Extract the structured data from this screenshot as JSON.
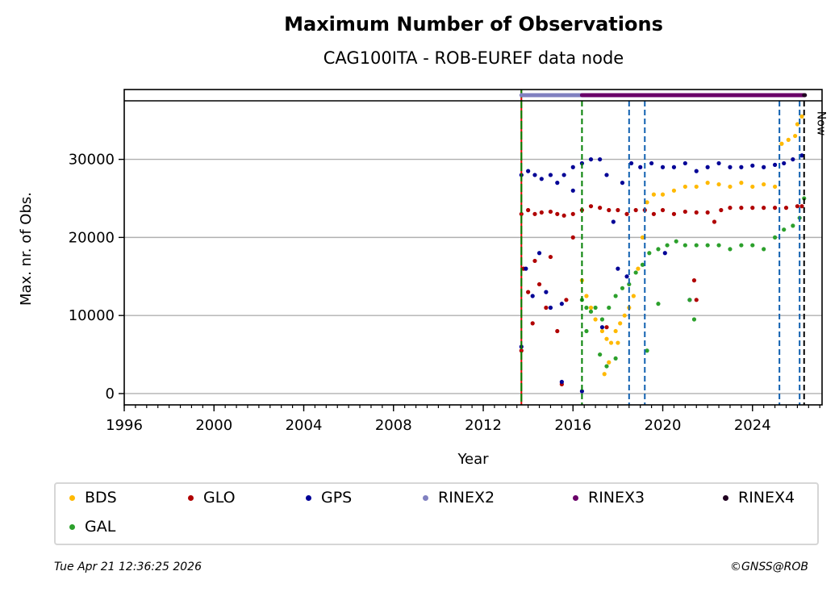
{
  "header": {
    "title": "Maximum Number of Observations",
    "subtitle": "CAG100ITA - ROB-EUREF data node"
  },
  "footer": {
    "timestamp": "Tue Apr 21 12:36:25 2026",
    "copyright": "©GNSS@ROB"
  },
  "chart_data": {
    "type": "scatter",
    "title": "Maximum Number of Observations",
    "subtitle": "CAG100ITA - ROB-EUREF data node",
    "xlabel": "Year",
    "ylabel": "Max. nr. of Obs.",
    "xlim": [
      1996,
      2027.1
    ],
    "ylim": [
      -1450,
      37500
    ],
    "x_ticks": [
      1996,
      2000,
      2004,
      2008,
      2012,
      2016,
      2020,
      2024
    ],
    "x_tick_labels": [
      "1996",
      "2000",
      "2004",
      "2008",
      "2012",
      "2016",
      "2020",
      "2024"
    ],
    "x_minor_step": 0.5,
    "y_ticks": [
      0,
      10000,
      20000,
      30000
    ],
    "y_tick_labels": [
      "0",
      "10000",
      "20000",
      "30000"
    ],
    "grid": "y",
    "now_label": "Now",
    "legend_position": "bottom",
    "series": [
      {
        "name": "BDS",
        "color": "#ffb900",
        "points": [
          [
            2016.4,
            14500
          ],
          [
            2016.6,
            12500
          ],
          [
            2016.8,
            11000
          ],
          [
            2017.0,
            9500
          ],
          [
            2017.3,
            8000
          ],
          [
            2017.5,
            7000
          ],
          [
            2017.7,
            6500
          ],
          [
            2017.9,
            8000
          ],
          [
            2018.1,
            9000
          ],
          [
            2018.3,
            10000
          ],
          [
            2018.5,
            11000
          ],
          [
            2018.7,
            12500
          ],
          [
            2018.9,
            16000
          ],
          [
            2019.1,
            20000
          ],
          [
            2019.3,
            24500
          ],
          [
            2019.6,
            25500
          ],
          [
            2020.0,
            25500
          ],
          [
            2020.5,
            26000
          ],
          [
            2021.0,
            26500
          ],
          [
            2021.5,
            26500
          ],
          [
            2022.0,
            27000
          ],
          [
            2022.5,
            26800
          ],
          [
            2023.0,
            26500
          ],
          [
            2023.5,
            27000
          ],
          [
            2024.0,
            26500
          ],
          [
            2024.5,
            26800
          ],
          [
            2025.0,
            26500
          ],
          [
            2025.3,
            32000
          ],
          [
            2025.6,
            32500
          ],
          [
            2025.9,
            33000
          ],
          [
            2026.0,
            34500
          ],
          [
            2026.2,
            35500
          ],
          [
            2017.4,
            2500
          ],
          [
            2017.6,
            4000
          ],
          [
            2018.0,
            6500
          ]
        ]
      },
      {
        "name": "GLO",
        "color": "#b00000",
        "points": [
          [
            2013.7,
            23000
          ],
          [
            2014.0,
            23500
          ],
          [
            2014.3,
            23000
          ],
          [
            2014.6,
            23200
          ],
          [
            2015.0,
            23300
          ],
          [
            2015.3,
            23000
          ],
          [
            2015.6,
            22800
          ],
          [
            2016.0,
            23000
          ],
          [
            2016.4,
            23500
          ],
          [
            2016.8,
            24000
          ],
          [
            2017.2,
            23800
          ],
          [
            2017.6,
            23500
          ],
          [
            2018.0,
            23500
          ],
          [
            2018.4,
            23000
          ],
          [
            2018.8,
            23500
          ],
          [
            2019.2,
            23500
          ],
          [
            2019.6,
            23000
          ],
          [
            2020.0,
            23500
          ],
          [
            2020.5,
            23000
          ],
          [
            2021.0,
            23300
          ],
          [
            2021.5,
            23200
          ],
          [
            2022.0,
            23200
          ],
          [
            2022.3,
            22000
          ],
          [
            2022.6,
            23500
          ],
          [
            2023.0,
            23800
          ],
          [
            2023.5,
            23800
          ],
          [
            2024.0,
            23800
          ],
          [
            2024.5,
            23800
          ],
          [
            2025.0,
            23800
          ],
          [
            2025.5,
            23800
          ],
          [
            2026.0,
            24000
          ],
          [
            2026.2,
            24000
          ],
          [
            2013.8,
            16000
          ],
          [
            2014.0,
            13000
          ],
          [
            2014.2,
            9000
          ],
          [
            2014.5,
            14000
          ],
          [
            2014.8,
            11000
          ],
          [
            2015.0,
            17500
          ],
          [
            2015.3,
            8000
          ],
          [
            2015.5,
            1200
          ],
          [
            2015.7,
            12000
          ],
          [
            2016.0,
            20000
          ],
          [
            2013.7,
            5500
          ],
          [
            2014.3,
            17000
          ],
          [
            2021.4,
            14500
          ],
          [
            2021.5,
            12000
          ],
          [
            2017.5,
            8500
          ]
        ]
      },
      {
        "name": "GPS",
        "color": "#000096",
        "points": [
          [
            2013.7,
            28000
          ],
          [
            2014.0,
            28500
          ],
          [
            2014.3,
            28000
          ],
          [
            2014.6,
            27500
          ],
          [
            2015.0,
            28000
          ],
          [
            2015.3,
            27000
          ],
          [
            2015.6,
            28000
          ],
          [
            2016.0,
            29000
          ],
          [
            2016.4,
            29500
          ],
          [
            2016.8,
            30000
          ],
          [
            2017.2,
            30000
          ],
          [
            2017.5,
            28000
          ],
          [
            2017.8,
            22000
          ],
          [
            2018.0,
            16000
          ],
          [
            2018.2,
            27000
          ],
          [
            2018.4,
            15000
          ],
          [
            2018.6,
            29500
          ],
          [
            2019.0,
            29000
          ],
          [
            2019.5,
            29500
          ],
          [
            2020.0,
            29000
          ],
          [
            2020.5,
            29000
          ],
          [
            2021.0,
            29500
          ],
          [
            2021.5,
            28500
          ],
          [
            2022.0,
            29000
          ],
          [
            2022.5,
            29500
          ],
          [
            2023.0,
            29000
          ],
          [
            2023.5,
            29000
          ],
          [
            2024.0,
            29200
          ],
          [
            2024.5,
            29000
          ],
          [
            2025.0,
            29300
          ],
          [
            2025.4,
            29500
          ],
          [
            2025.8,
            30000
          ],
          [
            2026.2,
            30500
          ],
          [
            2013.7,
            6000
          ],
          [
            2013.9,
            16000
          ],
          [
            2014.2,
            12500
          ],
          [
            2014.5,
            18000
          ],
          [
            2014.8,
            13000
          ],
          [
            2015.0,
            11000
          ],
          [
            2015.5,
            1500
          ],
          [
            2015.5,
            11500
          ],
          [
            2016.4,
            300
          ],
          [
            2016.0,
            26000
          ],
          [
            2017.3,
            8500
          ],
          [
            2020.1,
            18000
          ],
          [
            2021.2,
            12000
          ]
        ]
      },
      {
        "name": "GAL",
        "color": "#2ca02c",
        "points": [
          [
            2016.4,
            12000
          ],
          [
            2016.6,
            11000
          ],
          [
            2016.8,
            10500
          ],
          [
            2017.0,
            11000
          ],
          [
            2017.3,
            9500
          ],
          [
            2017.6,
            11000
          ],
          [
            2017.9,
            12500
          ],
          [
            2018.2,
            13500
          ],
          [
            2018.5,
            14000
          ],
          [
            2018.8,
            15500
          ],
          [
            2019.1,
            16500
          ],
          [
            2019.4,
            18000
          ],
          [
            2019.8,
            18500
          ],
          [
            2020.2,
            19000
          ],
          [
            2020.6,
            19500
          ],
          [
            2021.0,
            19000
          ],
          [
            2021.5,
            19000
          ],
          [
            2022.0,
            19000
          ],
          [
            2022.5,
            19000
          ],
          [
            2023.0,
            18500
          ],
          [
            2023.5,
            19000
          ],
          [
            2024.0,
            19000
          ],
          [
            2024.5,
            18500
          ],
          [
            2025.0,
            20000
          ],
          [
            2025.4,
            21000
          ],
          [
            2025.8,
            21500
          ],
          [
            2026.1,
            22500
          ],
          [
            2026.3,
            25000
          ],
          [
            2016.6,
            8000
          ],
          [
            2017.2,
            5000
          ],
          [
            2017.5,
            3500
          ],
          [
            2017.9,
            4500
          ],
          [
            2019.3,
            5500
          ],
          [
            2019.8,
            11500
          ],
          [
            2021.2,
            12000
          ],
          [
            2021.4,
            9500
          ]
        ]
      }
    ],
    "format_spans": [
      {
        "name": "RINEX2",
        "color": "#8080c0",
        "start": 2013.7,
        "end": 2016.4
      },
      {
        "name": "RINEX3",
        "color": "#6a0068",
        "start": 2016.4,
        "end": 2026.3
      },
      {
        "name": "RINEX4",
        "color": "#200020",
        "start": 2026.3,
        "end": 2026.3
      }
    ],
    "event_lines": [
      {
        "x": 2013.7,
        "color": "#008000",
        "style": "dashed-red-green"
      },
      {
        "x": 2016.4,
        "color": "#008000",
        "style": "dashed"
      },
      {
        "x": 2018.5,
        "color": "#1060b0",
        "style": "dashed"
      },
      {
        "x": 2019.2,
        "color": "#1060b0",
        "style": "dashed"
      },
      {
        "x": 2025.2,
        "color": "#1060b0",
        "style": "dashed"
      },
      {
        "x": 2026.1,
        "color": "#1060b0",
        "style": "dashed"
      },
      {
        "x": 2026.3,
        "color": "#000000",
        "style": "dashed"
      }
    ]
  },
  "legend": {
    "items": [
      {
        "label": "BDS",
        "color": "#ffb900"
      },
      {
        "label": "GLO",
        "color": "#b00000"
      },
      {
        "label": "GPS",
        "color": "#000096"
      },
      {
        "label": "RINEX2",
        "color": "#8080c0"
      },
      {
        "label": "RINEX3",
        "color": "#6a0068"
      },
      {
        "label": "RINEX4",
        "color": "#200020"
      },
      {
        "label": "GAL",
        "color": "#2ca02c"
      }
    ]
  }
}
